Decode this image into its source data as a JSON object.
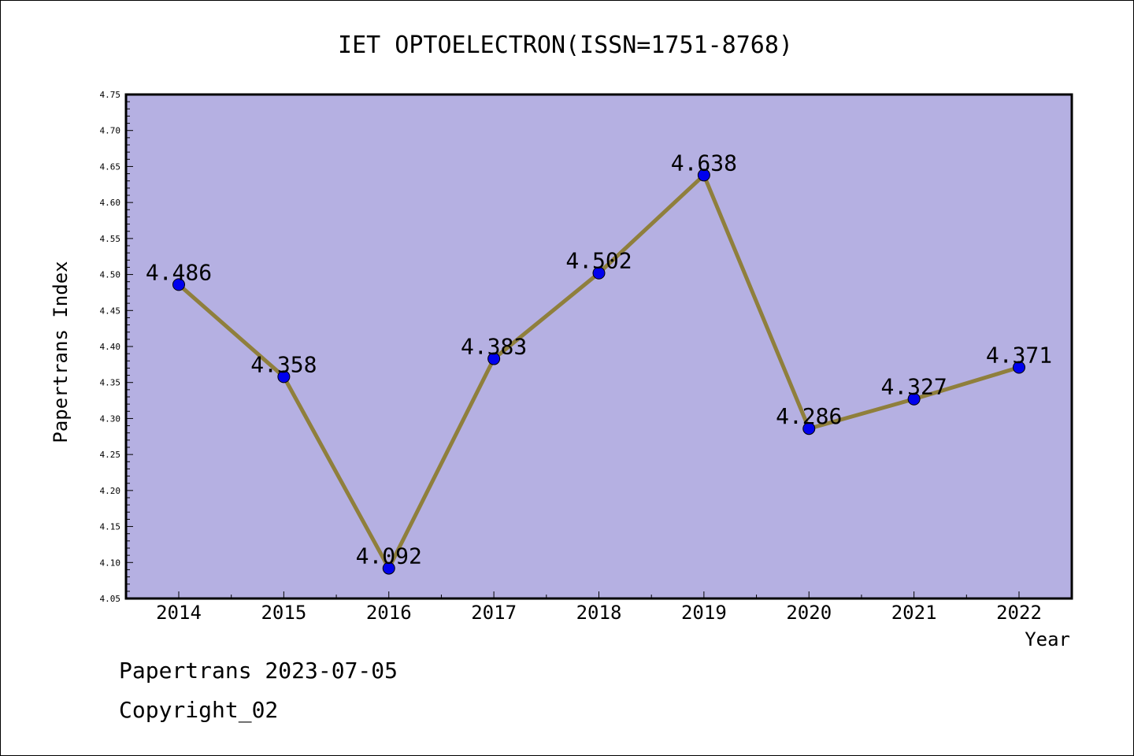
{
  "chart_data": {
    "type": "line",
    "title": "IET OPTOELECTRON(ISSN=1751-8768)",
    "xlabel": "Year",
    "ylabel": "Papertrans Index",
    "categories": [
      "2014",
      "2015",
      "2016",
      "2017",
      "2018",
      "2019",
      "2020",
      "2021",
      "2022"
    ],
    "series": [
      {
        "values": [
          4.486,
          4.358,
          4.092,
          4.383,
          4.502,
          4.638,
          4.286,
          4.327,
          4.371
        ],
        "data_labels": [
          "4.486",
          "4.358",
          "4.092",
          "4.383",
          "4.502",
          "4.638",
          "4.286",
          "4.327",
          "4.371"
        ]
      }
    ],
    "ylim": [
      4.05,
      4.75
    ],
    "ytick_labels": [
      "4.05",
      "4.10",
      "4.15",
      "4.20",
      "4.25",
      "4.30",
      "4.35",
      "4.40",
      "4.45",
      "4.50",
      "4.55",
      "4.60",
      "4.65",
      "4.70",
      "4.75"
    ],
    "grid": false,
    "colors": {
      "plot_background": "#b5b0e2",
      "line": "#8f7f3c",
      "marker": "#0000ee"
    }
  },
  "footer": {
    "line1": "Papertrans 2023-07-05",
    "line2": "Copyright_02"
  }
}
